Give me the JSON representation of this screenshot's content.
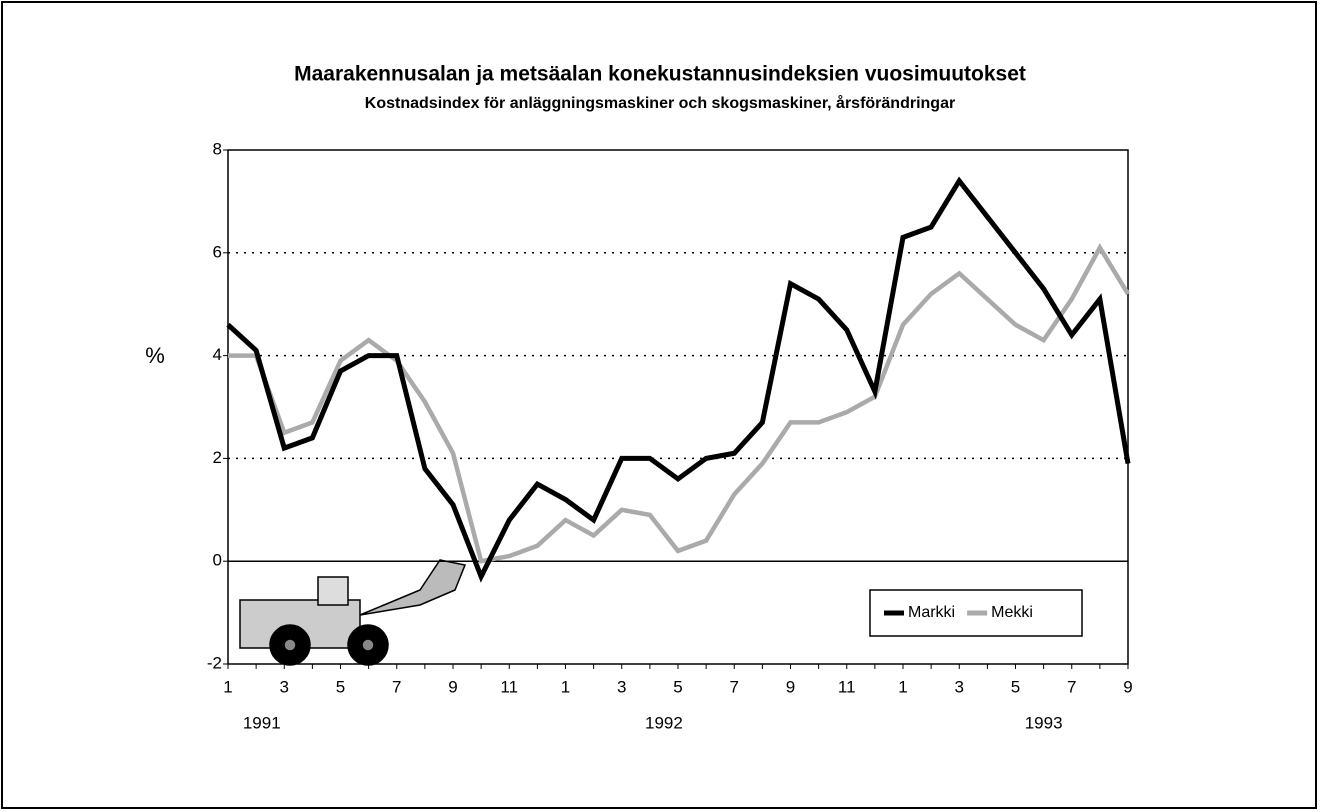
{
  "chart_data": {
    "type": "line",
    "title": "Maarakennusalan ja metsäalan konekustannusindeksien vuosimuutokset",
    "subtitle": "Kostnadsindex för anläggningsmaskiner och skogsmaskiner, årsförändringar",
    "y_label": "%",
    "categories": [
      "1",
      null,
      "3",
      null,
      "5",
      null,
      "7",
      null,
      "9",
      null,
      "11",
      null,
      "1",
      null,
      "3",
      null,
      "5",
      null,
      "7",
      null,
      "9",
      null,
      "11",
      null,
      "1",
      null,
      "3",
      null,
      "5",
      null,
      "7",
      null,
      "9"
    ],
    "year_labels": [
      "1991",
      "1992",
      "1993"
    ],
    "series": [
      {
        "name": "Markki",
        "color": "#000000",
        "values": [
          4.6,
          4.1,
          2.2,
          2.4,
          3.7,
          4.0,
          4.0,
          1.8,
          1.1,
          -0.3,
          0.8,
          1.5,
          1.2,
          0.8,
          2.0,
          2.0,
          1.6,
          2.0,
          2.1,
          2.7,
          5.4,
          5.1,
          4.5,
          3.3,
          6.3,
          6.5,
          7.4,
          6.7,
          6.0,
          5.3,
          4.4,
          5.1,
          1.9
        ]
      },
      {
        "name": "Mekki",
        "color": "#aaaaaa",
        "values": [
          4.0,
          4.0,
          2.5,
          2.7,
          3.9,
          4.3,
          3.9,
          3.1,
          2.1,
          0.0,
          0.1,
          0.3,
          0.8,
          0.5,
          1.0,
          0.9,
          0.2,
          0.4,
          1.3,
          1.9,
          2.7,
          2.7,
          2.9,
          3.2,
          4.6,
          5.2,
          5.6,
          5.1,
          4.6,
          4.3,
          5.1,
          6.1,
          5.2
        ]
      }
    ],
    "ylim": [
      -2,
      8
    ],
    "yticks": [
      -2,
      0,
      2,
      4,
      6,
      8
    ],
    "grid": true,
    "legend": "lower right"
  }
}
